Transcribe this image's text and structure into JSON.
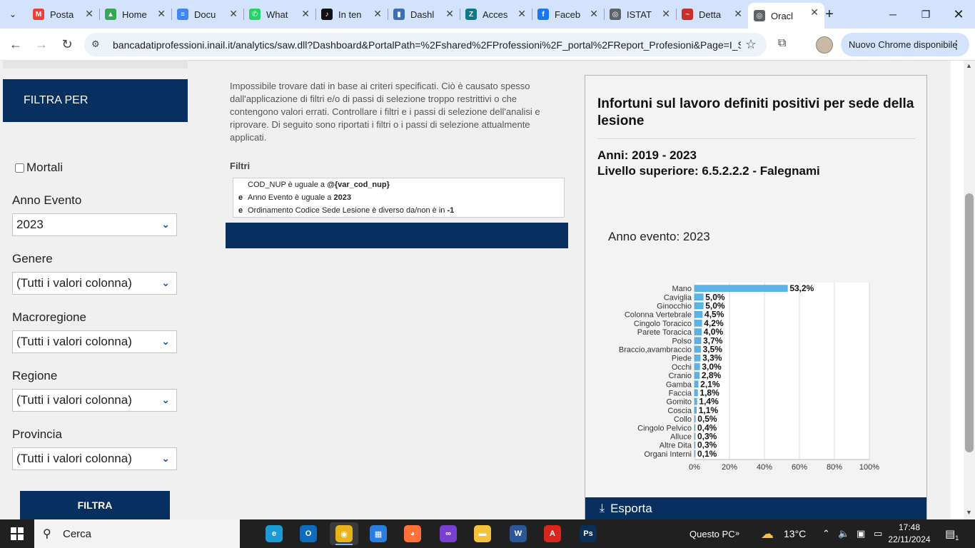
{
  "browser": {
    "tabs": [
      {
        "label": "Posta",
        "color": "#ea4335",
        "glyph": "M"
      },
      {
        "label": "Home",
        "color": "#34a853",
        "glyph": "▲"
      },
      {
        "label": "Docu",
        "color": "#4285f4",
        "glyph": "≡"
      },
      {
        "label": "What",
        "color": "#25d366",
        "glyph": "✆"
      },
      {
        "label": "In ten",
        "color": "#111111",
        "glyph": "♪"
      },
      {
        "label": "Dashl",
        "color": "#3d6fb6",
        "glyph": "▮"
      },
      {
        "label": "Acces",
        "color": "#0b7a8b",
        "glyph": "Z"
      },
      {
        "label": "Faceb",
        "color": "#1877f2",
        "glyph": "f"
      },
      {
        "label": "ISTAT",
        "color": "#5f6368",
        "glyph": "◎"
      },
      {
        "label": "Detta",
        "color": "#c9302c",
        "glyph": "~"
      },
      {
        "label": "Oracl",
        "color": "#5f6368",
        "glyph": "◎",
        "active": true
      }
    ],
    "url": "bancadatiprofessioni.inail.it/analytics/saw.dll?Dashboard&PortalPath=%2Fshared%2FProfessioni%2F_portal%2FReport_Profesioni&Page=I_S...",
    "chrome_update_label": "Nuovo Chrome disponibile"
  },
  "sidebar": {
    "header": "FILTRA PER",
    "mortali_label": "Mortali",
    "filters": [
      {
        "label": "Anno Evento",
        "value": "2023"
      },
      {
        "label": "Genere",
        "value": "(Tutti i valori colonna)"
      },
      {
        "label": "Macroregione",
        "value": "(Tutti i valori colonna)"
      },
      {
        "label": "Regione",
        "value": "(Tutti i valori colonna)"
      },
      {
        "label": "Provincia",
        "value": "(Tutti i valori colonna)"
      }
    ],
    "button_label": "FILTRA"
  },
  "main": {
    "message": "Impossibile trovare dati in base ai criteri specificati. Ciò è causato spesso dall'applicazione di filtri e/o di passi di selezione troppo restrittivi o che contengono valori errati. Controllare i filtri e i passi di selezione dell'analisi e riprovare. Di seguito sono riportati i filtri o i passi di selezione attualmente applicati.",
    "filtri_title": "Filtri",
    "filter_rows": [
      {
        "conj": "",
        "text": "COD_NUP è uguale a ",
        "value": "@{var_cod_nup}"
      },
      {
        "conj": "e",
        "text": "Anno Evento è uguale a ",
        "value": "2023"
      },
      {
        "conj": "e",
        "text": "Ordinamento Codice Sede Lesione è diverso da/non è in ",
        "value": "-1"
      }
    ]
  },
  "panel": {
    "title": "Infortuni sul lavoro definiti positivi per sede della lesione",
    "years": "Anni: 2019 - 2023",
    "level": "Livello superiore: 6.5.2.2.2 - Falegnami",
    "event_year": "Anno evento: 2023",
    "export_label": "Esporta"
  },
  "chart_data": {
    "type": "bar",
    "orientation": "horizontal",
    "categories": [
      "Mano",
      "Caviglia",
      "Ginocchio",
      "Colonna Vertebrale",
      "Cingolo Toracico",
      "Parete Toracica",
      "Polso",
      "Braccio,avambraccio",
      "Piede",
      "Occhi",
      "Cranio",
      "Gamba",
      "Faccia",
      "Gomito",
      "Coscia",
      "Collo",
      "Cingolo Pelvico",
      "Alluce",
      "Altre Dita",
      "Organi Interni"
    ],
    "values": [
      53.2,
      5.0,
      5.0,
      4.5,
      4.2,
      4.0,
      3.7,
      3.5,
      3.3,
      3.0,
      2.8,
      2.1,
      1.8,
      1.4,
      1.1,
      0.5,
      0.4,
      0.3,
      0.3,
      0.1
    ],
    "value_labels": [
      "53,2%",
      "5,0%",
      "5,0%",
      "4,5%",
      "4,2%",
      "4,0%",
      "3,7%",
      "3,5%",
      "3,3%",
      "3,0%",
      "2,8%",
      "2,1%",
      "1,8%",
      "1,4%",
      "1,1%",
      "0,5%",
      "0,4%",
      "0,3%",
      "0,3%",
      "0,1%"
    ],
    "xlim": [
      0,
      100
    ],
    "x_ticks": [
      "0%",
      "20%",
      "40%",
      "60%",
      "80%",
      "100%"
    ],
    "grid": true,
    "bar_color": "#5ab4e6"
  },
  "taskbar": {
    "search_placeholder": "Cerca",
    "apps": [
      {
        "name": "edge",
        "color": "#1c9ad6",
        "glyph": "e"
      },
      {
        "name": "outlook",
        "color": "#0f6cbd",
        "glyph": "O"
      },
      {
        "name": "chrome",
        "color": "#e8b21a",
        "glyph": "◉",
        "active": true
      },
      {
        "name": "store",
        "color": "#2b7de0",
        "glyph": "▦"
      },
      {
        "name": "firefox",
        "color": "#ff7139",
        "glyph": "◕"
      },
      {
        "name": "app-purple",
        "color": "#7a3fd1",
        "glyph": "∞"
      },
      {
        "name": "explorer",
        "color": "#f3c13a",
        "glyph": "▬"
      },
      {
        "name": "word",
        "color": "#2b579a",
        "glyph": "W"
      },
      {
        "name": "acrobat",
        "color": "#d9261c",
        "glyph": "A"
      },
      {
        "name": "photoshop",
        "color": "#0b2f55",
        "glyph": "Ps"
      }
    ],
    "questo_pc": "Questo PC",
    "weather": "13°C",
    "time": "17:48",
    "date": "22/11/2024",
    "notifications": "1"
  }
}
